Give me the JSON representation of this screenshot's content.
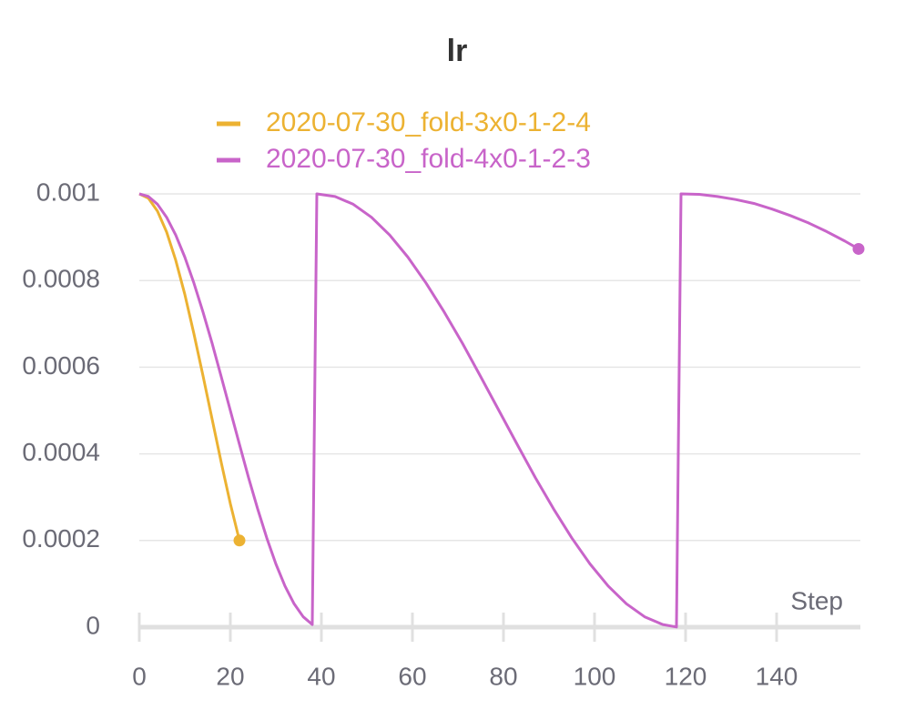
{
  "chart_data": {
    "type": "line",
    "title": "lr",
    "x_label": "Step",
    "xlim": [
      0,
      158.4
    ],
    "xticks": [
      0,
      20,
      40,
      60,
      80,
      100,
      120,
      140
    ],
    "ylim": [
      0,
      0.001
    ],
    "yticks": [
      0,
      0.0002,
      0.0004,
      0.0006,
      0.0008,
      0.001
    ],
    "grid": true,
    "series": [
      {
        "name": "2020-07-30_fold-3x0-1-2-4",
        "color": "#ecb232",
        "x": [
          0,
          2,
          4,
          6,
          8,
          10,
          12,
          14,
          16,
          18,
          20,
          22
        ],
        "values": [
          0.001,
          0.00099,
          0.00096,
          0.000912,
          0.000847,
          0.000768,
          0.000677,
          0.00058,
          0.00048,
          0.00038,
          0.000285,
          0.0002
        ]
      },
      {
        "name": "2020-07-30_fold-4x0-1-2-3",
        "color": "#c864c9",
        "x": [
          0,
          2,
          4,
          6,
          8,
          10,
          12,
          14,
          16,
          18,
          20,
          22,
          24,
          26,
          28,
          30,
          32,
          34,
          36,
          38,
          39,
          43,
          47,
          51,
          55,
          59,
          63,
          67,
          71,
          75,
          79,
          83,
          87,
          91,
          95,
          99,
          103,
          107,
          111,
          115,
          118,
          119,
          123,
          127,
          131,
          135,
          139,
          143,
          147,
          151,
          155,
          158
        ],
        "values": [
          0.001,
          0.000994,
          0.000976,
          0.000946,
          0.000905,
          0.000854,
          0.000794,
          0.000727,
          0.000655,
          0.000578,
          0.0005,
          0.000422,
          0.000345,
          0.000273,
          0.000206,
          0.000146,
          9.5e-05,
          5.4e-05,
          2.4e-05,
          6e-06,
          0.001,
          0.000994,
          0.000976,
          0.000946,
          0.000905,
          0.000854,
          0.000794,
          0.000727,
          0.000655,
          0.000578,
          0.0005,
          0.000422,
          0.000345,
          0.000273,
          0.000206,
          0.000146,
          9.5e-05,
          5.4e-05,
          2.4e-05,
          6e-06,
          4e-07,
          0.001,
          0.000999,
          0.000994,
          0.000987,
          0.000978,
          0.000965,
          0.00095,
          0.000933,
          0.000913,
          0.000891,
          0.000873
        ]
      }
    ]
  }
}
